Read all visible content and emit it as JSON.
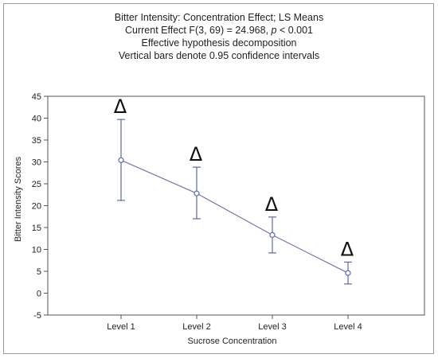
{
  "chart_data": {
    "type": "line",
    "title": "Bitter Intensity: Concentration Effect; LS Means",
    "subtitle_lines": [
      "Current Effect F(3, 69) = 24.968, p < 0.001",
      "Effective hypothesis decomposition",
      "Vertical bars denote 0.95 confidence intervals"
    ],
    "subtitle_1_prefix": "Current Effect F(3, 69) = 24.968, ",
    "subtitle_1_italic": "p",
    "subtitle_1_suffix": " < 0.001",
    "xlabel": "Sucrose Concentration",
    "ylabel": "Bitter Intensity Scores",
    "ylim": [
      -5,
      45
    ],
    "yticks": [
      -5,
      0,
      5,
      10,
      15,
      20,
      25,
      30,
      35,
      40,
      45
    ],
    "categories": [
      "Level 1",
      "Level 2",
      "Level 3",
      "Level 4"
    ],
    "series": [
      {
        "values": [
          30.4,
          22.8,
          13.3,
          4.6
        ],
        "ci_low": [
          21.2,
          17.0,
          9.2,
          2.1
        ],
        "ci_high": [
          39.7,
          28.8,
          17.4,
          7.1
        ]
      }
    ],
    "annotations": [
      "Δ",
      "Δ",
      "Δ",
      "Δ"
    ],
    "grid": false,
    "line_color": "#6f79a8",
    "marker_color": "#5a6ea8",
    "error_bar_color": "#5d6a9a"
  }
}
